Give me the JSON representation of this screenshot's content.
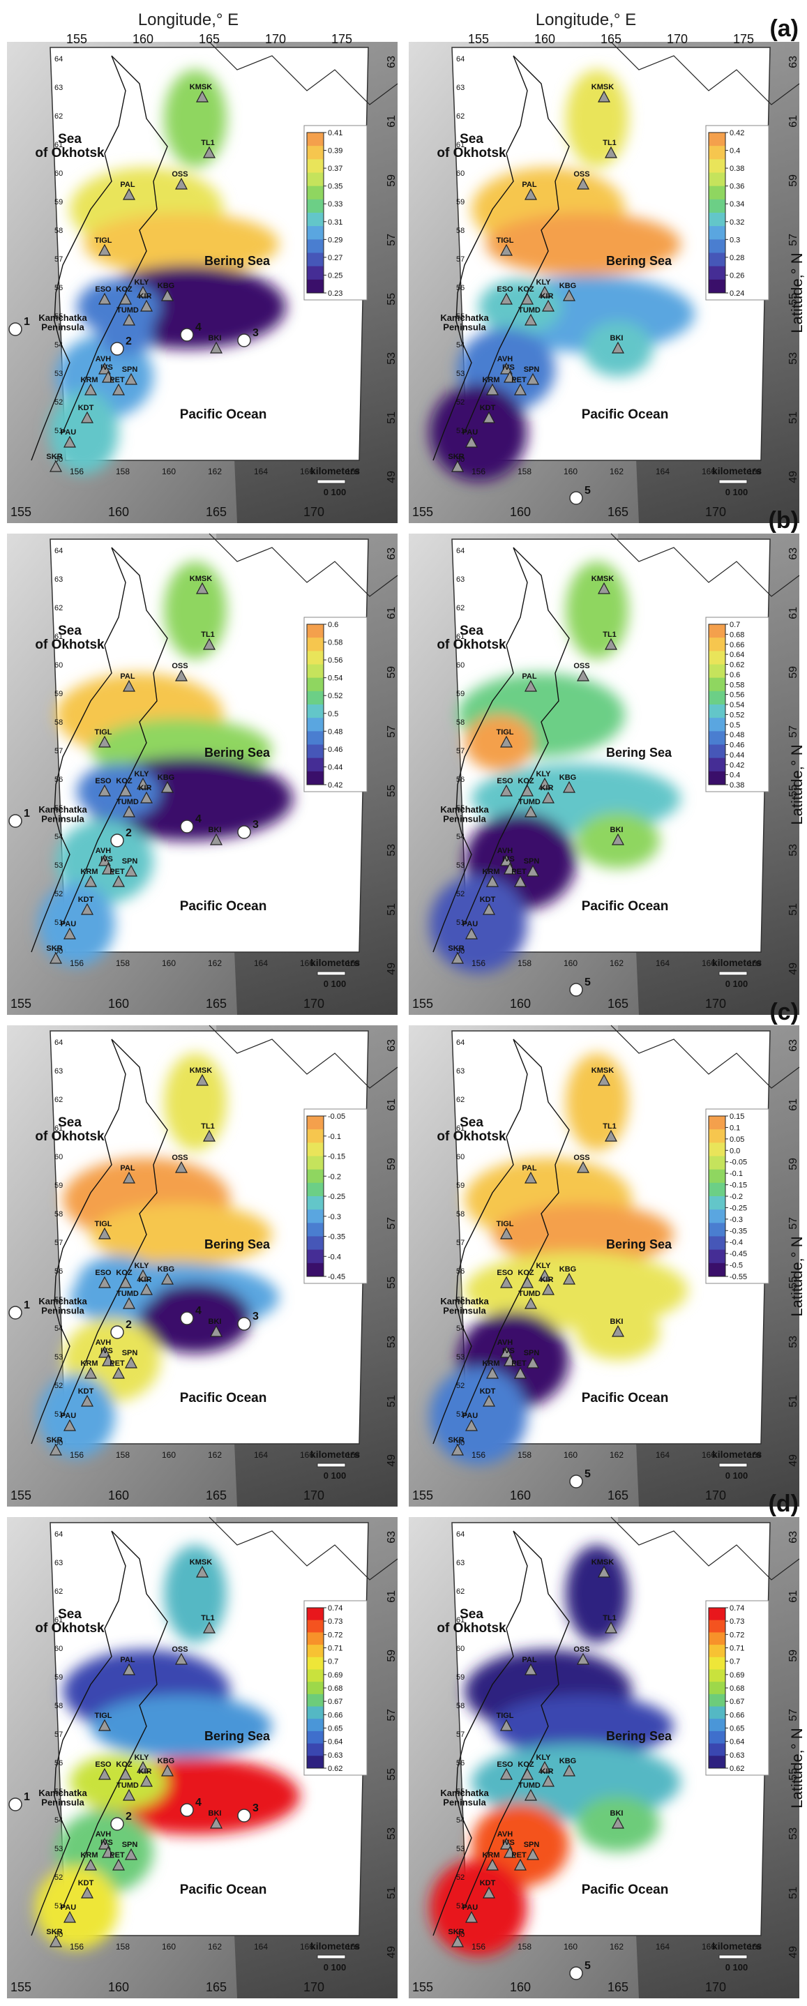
{
  "figure": {
    "top_axis_title": "Longitude,° E",
    "right_axis_title": "Latitude,° N",
    "top_lon_ticks": [
      "155",
      "160",
      "165",
      "170",
      "175"
    ],
    "bottom_lon_ticks": [
      "155",
      "160",
      "165",
      "170"
    ],
    "lat_ticks": [
      "63",
      "61",
      "59",
      "57",
      "55",
      "53",
      "51",
      "49"
    ],
    "inner_lon_ticks": [
      "156",
      "158",
      "160",
      "162",
      "164",
      "166",
      "168"
    ],
    "inner_lat_ticks": [
      "64",
      "63",
      "62",
      "61",
      "60",
      "59",
      "58",
      "57",
      "56",
      "55",
      "54",
      "53",
      "52",
      "51",
      "50"
    ],
    "labels": {
      "sea_okhotsk": "Sea\nof Okhotsk",
      "bering_sea": "Bering Sea",
      "pacific_ocean": "Pacific Ocean",
      "kamchatka": "Kamchatka\nPeninsula",
      "scale_title": "kilometers",
      "scale_values": "0   100"
    },
    "stations": [
      "KMSK",
      "TL1",
      "PAL",
      "OSS",
      "TIGL",
      "ESO",
      "KOZ",
      "KLY",
      "KIR",
      "KBG",
      "TUMD",
      "BKI",
      "AVH",
      "IVS",
      "PET",
      "SPN",
      "KRM",
      "KDT",
      "PAU",
      "SKR"
    ],
    "sites": [
      "1",
      "2",
      "3",
      "4",
      "5"
    ]
  },
  "rows": [
    {
      "label": "(a)",
      "left": {
        "cbar_ticks": [
          "0.41",
          "0.39",
          "0.37",
          "0.35",
          "0.33",
          "0.31",
          "0.29",
          "0.27",
          "0.25",
          "0.23"
        ],
        "palette": "spectral"
      },
      "right": {
        "cbar_ticks": [
          "0.42",
          "0.4",
          "0.38",
          "0.36",
          "0.34",
          "0.32",
          "0.3",
          "0.28",
          "0.26",
          "0.24"
        ],
        "palette": "spectral"
      }
    },
    {
      "label": "(b)",
      "left": {
        "cbar_ticks": [
          "0.6",
          "0.58",
          "0.56",
          "0.54",
          "0.52",
          "0.5",
          "0.48",
          "0.46",
          "0.44",
          "0.42"
        ],
        "palette": "spectral"
      },
      "right": {
        "cbar_ticks": [
          "0.7",
          "0.68",
          "0.66",
          "0.64",
          "0.62",
          "0.6",
          "0.58",
          "0.56",
          "0.54",
          "0.52",
          "0.5",
          "0.48",
          "0.46",
          "0.44",
          "0.42",
          "0.4",
          "0.38"
        ],
        "palette": "spectral"
      }
    },
    {
      "label": "(c)",
      "left": {
        "cbar_ticks": [
          "-0.05",
          "-0.1",
          "-0.15",
          "-0.2",
          "-0.25",
          "-0.3",
          "-0.35",
          "-0.4",
          "-0.45"
        ],
        "palette": "spectral"
      },
      "right": {
        "cbar_ticks": [
          "0.15",
          "0.1",
          "0.05",
          "0.0",
          "-0.05",
          "-0.1",
          "-0.15",
          "-0.2",
          "-0.25",
          "-0.3",
          "-0.35",
          "-0.4",
          "-0.45",
          "-0.5",
          "-0.55"
        ],
        "palette": "spectral"
      }
    },
    {
      "label": "(d)",
      "left": {
        "cbar_ticks": [
          "0.74",
          "0.73",
          "0.72",
          "0.71",
          "0.7",
          "0.69",
          "0.68",
          "0.67",
          "0.66",
          "0.65",
          "0.64",
          "0.63",
          "0.62"
        ],
        "palette": "jet"
      },
      "right": {
        "cbar_ticks": [
          "0.74",
          "0.73",
          "0.72",
          "0.71",
          "0.7",
          "0.69",
          "0.68",
          "0.67",
          "0.66",
          "0.65",
          "0.64",
          "0.63",
          "0.62"
        ],
        "palette": "jet"
      }
    }
  ],
  "palettes": {
    "spectral": [
      "#f4a04c",
      "#f6c64e",
      "#e9e45a",
      "#c5e35c",
      "#8fd660",
      "#6ccf86",
      "#63c6c9",
      "#5aa6e0",
      "#4a7ed0",
      "#4657b8",
      "#452d95",
      "#3a0f6a"
    ],
    "jet": [
      "#e8171c",
      "#f4531f",
      "#f7922a",
      "#f7c233",
      "#eee638",
      "#c9e23d",
      "#9dd84a",
      "#6dcc7a",
      "#54b8c4",
      "#4a96d8",
      "#3f6fcc",
      "#3a47b0",
      "#2e2180"
    ]
  }
}
